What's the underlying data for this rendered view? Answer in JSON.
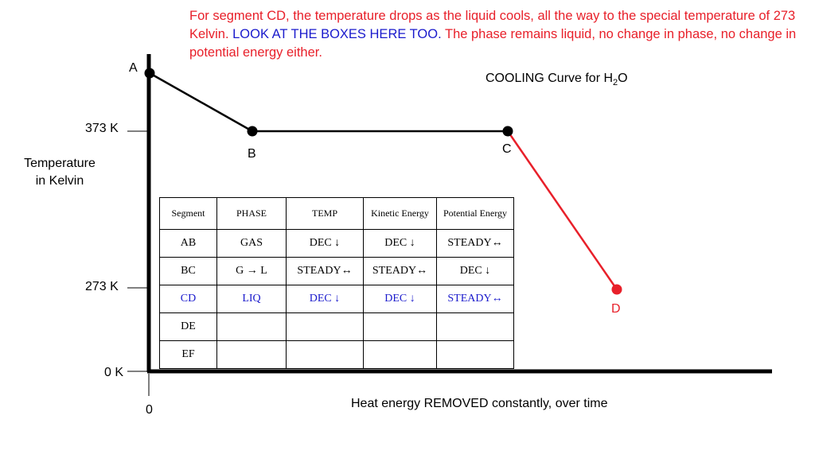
{
  "caption": {
    "part1": "For segment CD, the temperature drops as the liquid cools, all the way to the special temperature of 273 Kelvin.",
    "part2": "LOOK AT THE BOXES HERE TOO.",
    "part3": "The phase remains liquid, no change in phase, no change in potential energy either."
  },
  "title": {
    "main": "COOLING Curve for H",
    "sub": "2",
    "end": "O"
  },
  "axes": {
    "ylabel_line1": "Temperature",
    "ylabel_line2": "in Kelvin",
    "xlabel": "Heat energy REMOVED constantly, over time",
    "yticks": [
      "373 K",
      "273 K",
      "0 K"
    ],
    "xtick": "0"
  },
  "points": {
    "A": "A",
    "B": "B",
    "C": "C",
    "D": "D"
  },
  "colors": {
    "black": "#000000",
    "highlight_red": "#e8202a",
    "highlight_blue": "#1a1acc"
  },
  "table": {
    "headers": [
      "Segment",
      "PHASE",
      "TEMP",
      "Kinetic Energy",
      "Potential Energy"
    ],
    "rows": [
      [
        "AB",
        "GAS",
        "DEC ↓",
        "DEC ↓",
        "STEADY↔"
      ],
      [
        "BC",
        "G → L",
        "STEADY↔",
        "STEADY↔",
        "DEC ↓"
      ],
      [
        "CD",
        "LIQ",
        "DEC ↓",
        "DEC ↓",
        "STEADY↔"
      ],
      [
        "DE",
        "",
        "",
        "",
        ""
      ],
      [
        "EF",
        "",
        "",
        "",
        ""
      ]
    ]
  }
}
